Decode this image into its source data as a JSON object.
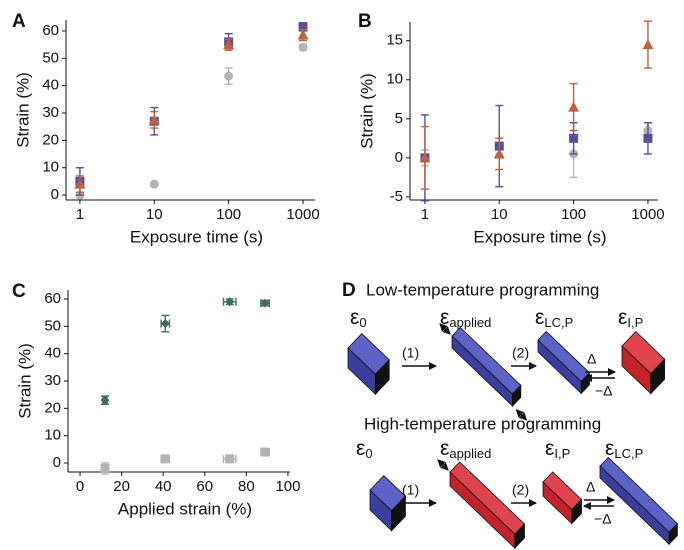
{
  "chart_data": [
    {
      "type": "scatter",
      "panel": "A",
      "xscale": "log",
      "xlim": [
        0.65,
        1450
      ],
      "ylim": [
        -1.8,
        64
      ],
      "xticks": [
        1,
        10,
        100,
        1000
      ],
      "yticks": [
        0,
        10,
        20,
        30,
        40,
        50,
        60
      ],
      "xlabel": "Exposure time (s)",
      "ylabel": "Strain (%)",
      "series": [
        {
          "color": "#b3b3b3",
          "marker": "circle",
          "x": [
            1,
            10,
            100,
            1000
          ],
          "values": [
            0,
            4,
            43.5,
            54
          ],
          "errors": [
            1,
            0.5,
            3,
            1
          ]
        },
        {
          "color": "#5a4f9a",
          "marker": "square",
          "x": [
            1,
            10,
            100,
            1000
          ],
          "values": [
            5,
            27,
            56,
            61.5
          ],
          "errors": [
            5,
            5,
            3,
            1.5
          ]
        },
        {
          "color": "#c0603e",
          "marker": "triangle",
          "x": [
            1,
            10,
            100,
            1000
          ],
          "values": [
            4,
            27.5,
            55,
            58.5
          ],
          "errors": [
            3,
            3,
            2,
            2
          ]
        }
      ]
    },
    {
      "type": "scatter",
      "panel": "B",
      "xscale": "log",
      "xlim": [
        0.63,
        1365
      ],
      "ylim": [
        -5.4,
        17.4
      ],
      "xticks": [
        1,
        10,
        100,
        1000
      ],
      "yticks": [
        -5,
        0,
        5,
        10,
        15
      ],
      "xlabel": "Exposure time (s)",
      "ylabel": "Strain (%)",
      "series": [
        {
          "color": "#b3b3b3",
          "marker": "circle",
          "x": [
            1,
            10,
            100,
            1000
          ],
          "values": [
            0,
            1.5,
            0.5,
            3.5
          ],
          "errors": [
            1,
            1,
            3,
            1
          ]
        },
        {
          "color": "#5a4f9a",
          "marker": "square",
          "x": [
            1,
            10,
            100,
            1000
          ],
          "values": [
            0,
            1.5,
            2.5,
            2.5
          ],
          "errors": [
            5.5,
            5.2,
            2,
            2
          ]
        },
        {
          "color": "#c0603e",
          "marker": "triangle",
          "x": [
            1,
            10,
            100,
            1000
          ],
          "values": [
            0,
            0.5,
            6.5,
            14.5
          ],
          "errors": [
            4,
            2,
            3,
            3
          ]
        }
      ]
    },
    {
      "type": "scatter",
      "panel": "C",
      "xscale": "linear",
      "xlim": [
        -5.8,
        101
      ],
      "ylim": [
        -3.3,
        63.3
      ],
      "xticks": [
        0,
        20,
        40,
        60,
        80,
        100
      ],
      "yticks": [
        0,
        10,
        20,
        30,
        40,
        50,
        60
      ],
      "xlabel": "Applied strain (%)",
      "ylabel": "Strain (%)",
      "series": [
        {
          "color": "#3f6e55",
          "marker": "diamond",
          "x": [
            12,
            41,
            72,
            89
          ],
          "values": [
            23,
            51,
            59,
            58.5
          ],
          "errors": [
            1.5,
            3,
            1,
            1
          ],
          "xerrors": [
            1,
            2,
            3,
            2
          ]
        },
        {
          "color": "#b3b3b3",
          "marker": "square",
          "x": [
            12,
            41,
            72,
            89
          ],
          "values": [
            -2,
            1.5,
            1.5,
            4
          ],
          "errors": [
            2,
            1,
            1,
            1
          ],
          "xerrors": [
            1,
            2,
            3,
            2
          ]
        }
      ]
    }
  ],
  "diagram": {
    "panel": "D",
    "rows": [
      {
        "title": "Low-temperature programming",
        "labels": [
          {
            "symbol": "ε",
            "sub": "0"
          },
          {
            "symbol": "ε",
            "sub": "applied"
          },
          {
            "symbol": "ε",
            "sub": "LC,P"
          },
          {
            "symbol": "ε",
            "sub": "I,P"
          }
        ],
        "steps": [
          "(1)",
          "(2)"
        ],
        "forward": "Δ",
        "back": "−Δ"
      },
      {
        "title": "High-temperature programming",
        "labels": [
          {
            "symbol": "ε",
            "sub": "0"
          },
          {
            "symbol": "ε",
            "sub": "applied"
          },
          {
            "symbol": "ε",
            "sub": "I,P"
          },
          {
            "symbol": "ε",
            "sub": "LC,P"
          }
        ],
        "steps": [
          "(1)",
          "(2)"
        ],
        "forward": "Δ",
        "back": "−Δ"
      }
    ]
  }
}
